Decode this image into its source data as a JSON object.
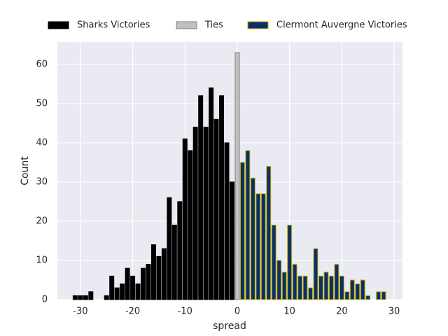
{
  "chart_data": {
    "type": "bar",
    "xlabel": "spread",
    "ylabel": "Count",
    "xlim": [
      -34.4,
      31.6
    ],
    "ylim": [
      0,
      65.7
    ],
    "xticks": [
      -30,
      -20,
      -10,
      0,
      10,
      20,
      30
    ],
    "yticks": [
      0,
      10,
      20,
      30,
      40,
      50,
      60
    ],
    "grid": true,
    "legend": "top",
    "series": [
      {
        "name": "Sharks Victories",
        "color": "#000000",
        "edgecolor": "#000000",
        "x": [
          -31,
          -30,
          -29,
          -28,
          -25,
          -24,
          -23,
          -22,
          -21,
          -20,
          -19,
          -18,
          -17,
          -16,
          -15,
          -14,
          -13,
          -12,
          -11,
          -10,
          -9,
          -8,
          -7,
          -6,
          -5,
          -4,
          -3,
          -2,
          -1
        ],
        "values": [
          1,
          1,
          1,
          2,
          1,
          6,
          3,
          4,
          8,
          6,
          4,
          8,
          9,
          14,
          11,
          13,
          26,
          19,
          25,
          41,
          38,
          44,
          52,
          44,
          54,
          46,
          52,
          40,
          30
        ]
      },
      {
        "name": "Ties",
        "color": "#c0c0c0",
        "edgecolor": "#808080",
        "x": [
          0
        ],
        "values": [
          63
        ]
      },
      {
        "name": "Clermont Auvergne Victories",
        "color": "#0b2f6b",
        "edgecolor": "#c8b400",
        "x": [
          1,
          2,
          3,
          4,
          5,
          6,
          7,
          8,
          9,
          10,
          11,
          12,
          13,
          14,
          15,
          16,
          17,
          18,
          19,
          20,
          21,
          22,
          23,
          24,
          25,
          27,
          28
        ],
        "values": [
          35,
          38,
          31,
          27,
          27,
          34,
          19,
          10,
          7,
          19,
          9,
          6,
          6,
          3,
          13,
          6,
          7,
          6,
          9,
          6,
          2,
          5,
          4,
          5,
          1,
          2,
          2
        ]
      }
    ]
  }
}
